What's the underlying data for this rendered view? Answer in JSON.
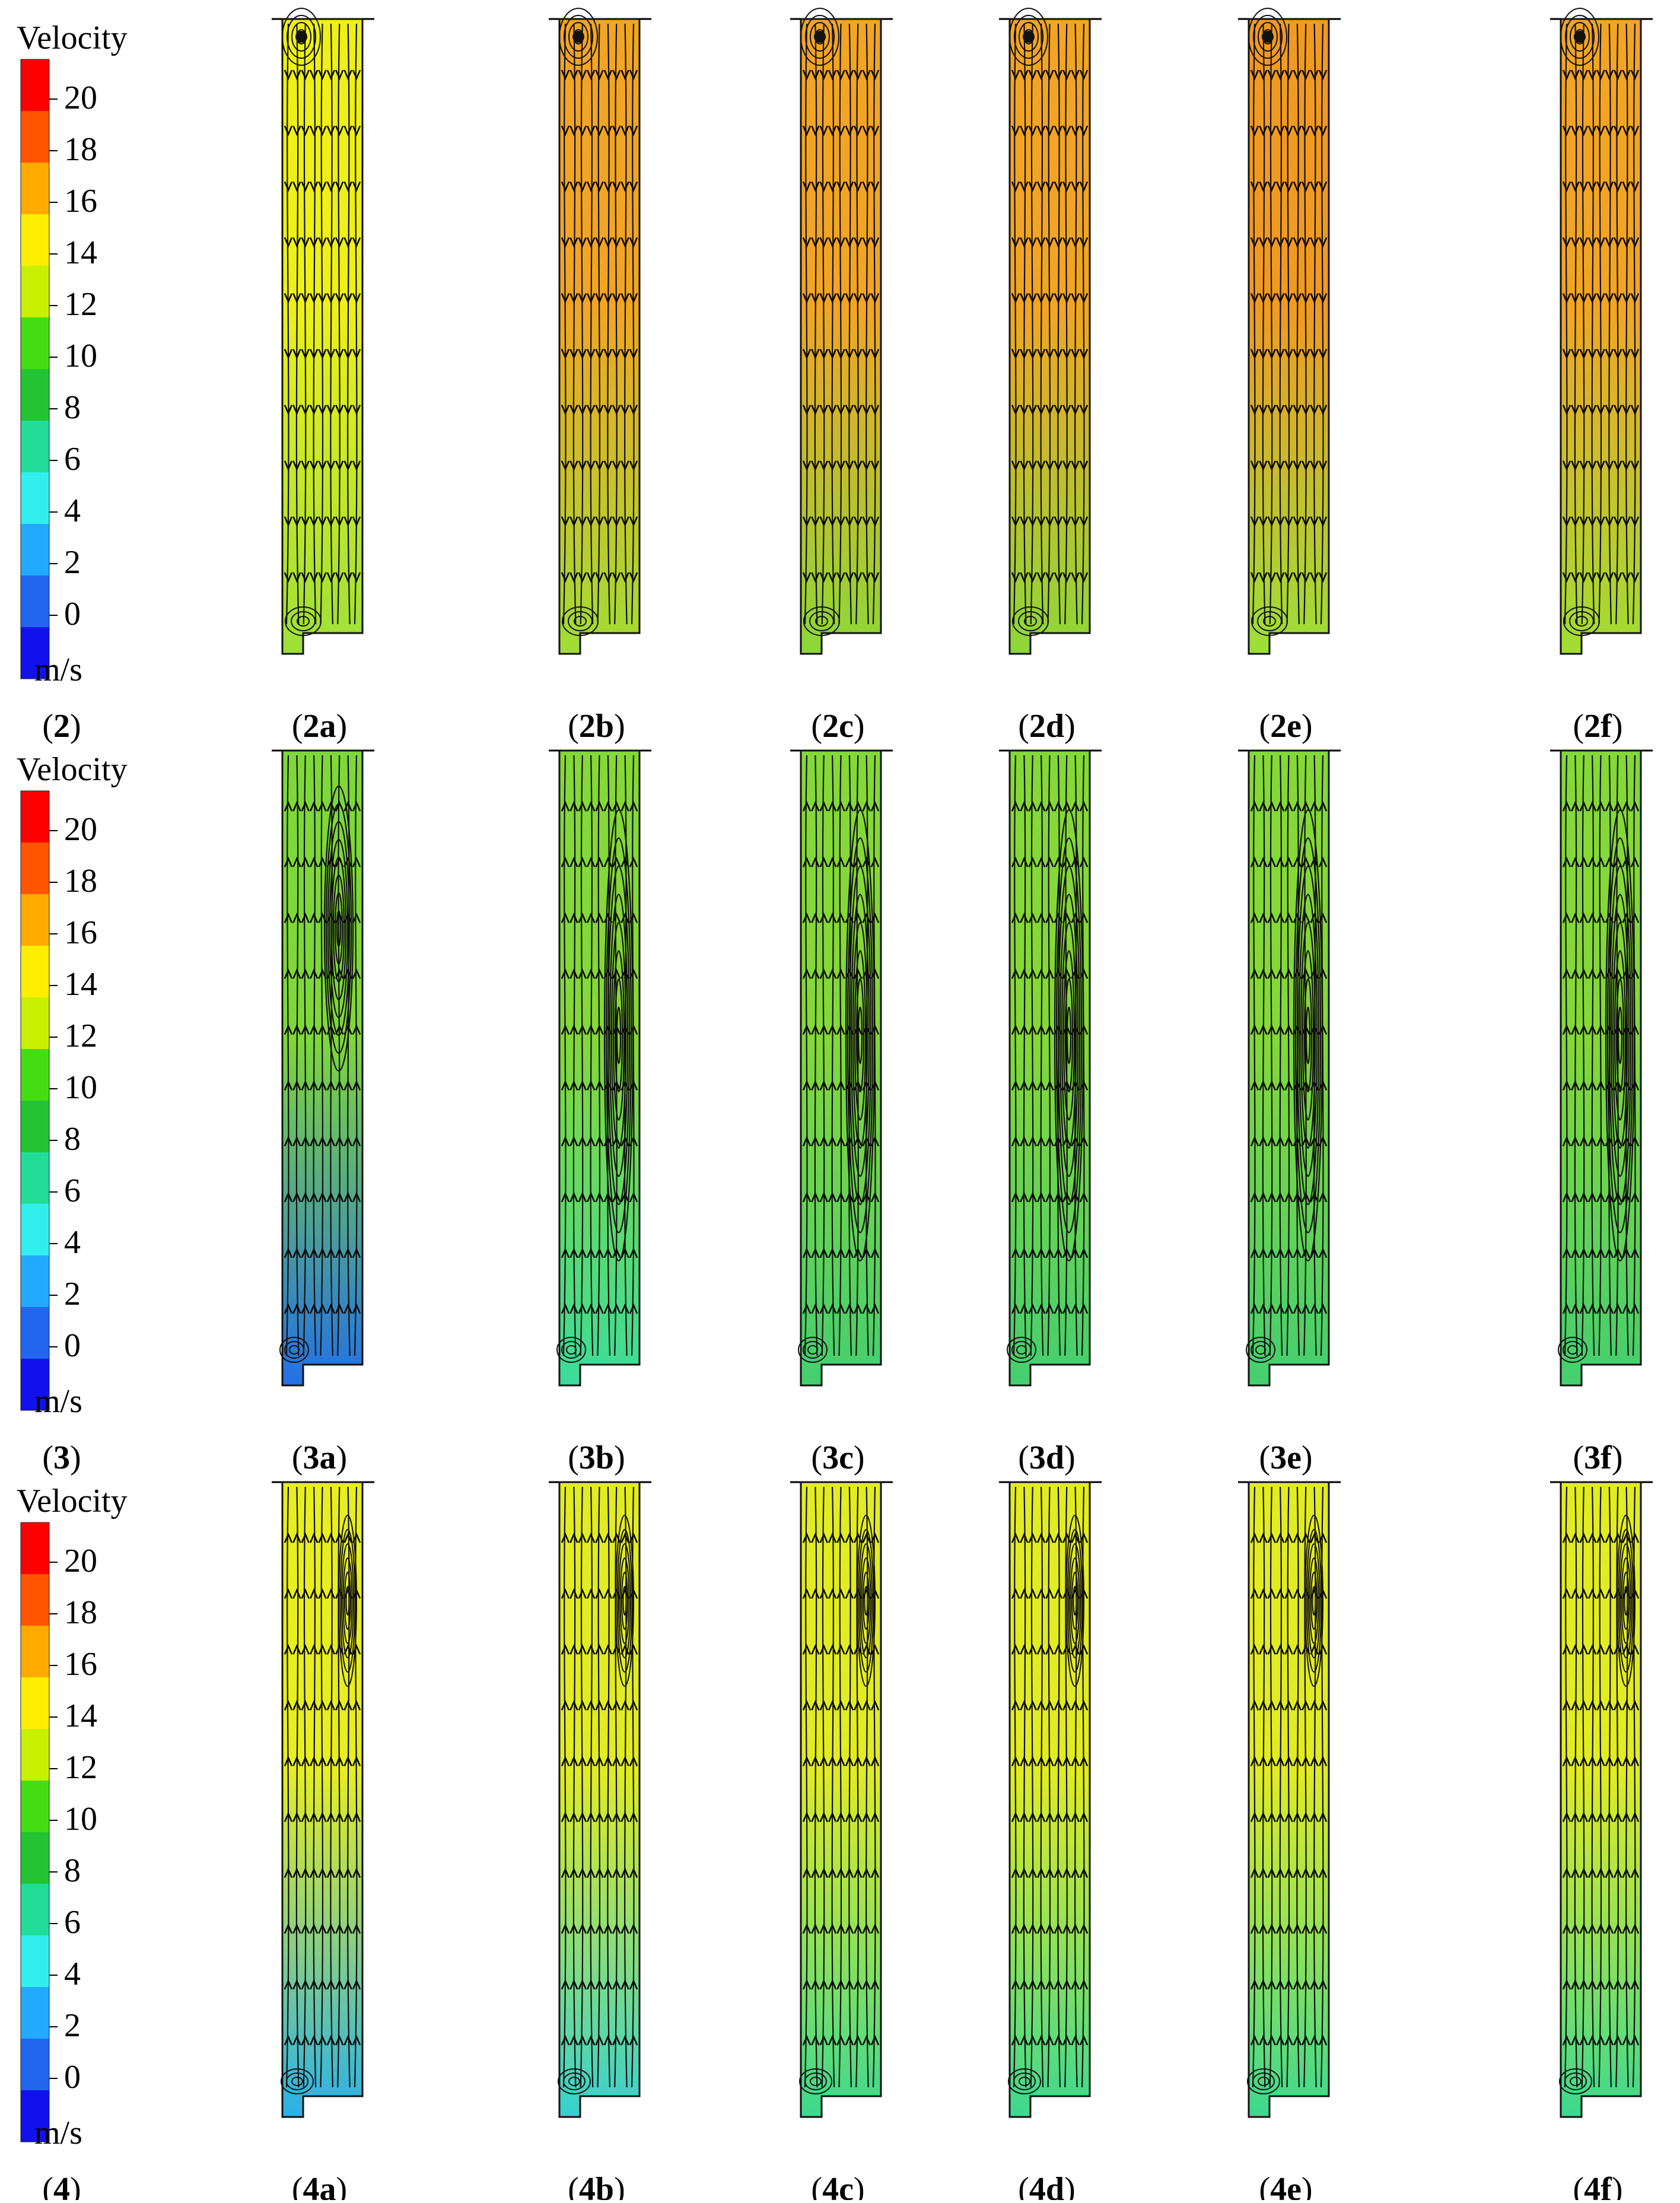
{
  "legend": {
    "title": "Velocity",
    "unit": "m/s",
    "ticks": [
      "20",
      "18",
      "16",
      "14",
      "12",
      "10",
      "8",
      "6",
      "4",
      "2",
      "0"
    ],
    "colors": [
      "#ff0000",
      "#ff5500",
      "#ffaa00",
      "#ffee00",
      "#c8f000",
      "#44dd11",
      "#22c433",
      "#22dd99",
      "#33eeee",
      "#22aaff",
      "#2266ee",
      "#1111ee"
    ]
  },
  "rows": [
    {
      "label_num": "2",
      "panels": [
        {
          "num": "2",
          "letter": "a",
          "top": "#eef018",
          "bottom": "#9ce038",
          "vortex": "none"
        },
        {
          "num": "2",
          "letter": "b",
          "top": "#f2a524",
          "bottom": "#a0de34",
          "vortex": "none"
        },
        {
          "num": "2",
          "letter": "c",
          "top": "#f2a524",
          "bottom": "#8cd838",
          "vortex": "none"
        },
        {
          "num": "2",
          "letter": "d",
          "top": "#f2a524",
          "bottom": "#8cd838",
          "vortex": "none"
        },
        {
          "num": "2",
          "letter": "e",
          "top": "#f19a22",
          "bottom": "#9ce038",
          "vortex": "none"
        },
        {
          "num": "2",
          "letter": "f",
          "top": "#f2a524",
          "bottom": "#a0de34",
          "vortex": "none"
        }
      ]
    },
    {
      "label_num": "3",
      "panels": [
        {
          "num": "3",
          "letter": "a",
          "top": "#7fd83a",
          "bottom": "#2270e6",
          "vortex": "upper"
        },
        {
          "num": "3",
          "letter": "b",
          "top": "#84d838",
          "bottom": "#3cdc9a",
          "vortex": "long"
        },
        {
          "num": "3",
          "letter": "c",
          "top": "#84d838",
          "bottom": "#44cf70",
          "vortex": "long"
        },
        {
          "num": "3",
          "letter": "d",
          "top": "#84d838",
          "bottom": "#44cf70",
          "vortex": "long"
        },
        {
          "num": "3",
          "letter": "e",
          "top": "#84d838",
          "bottom": "#44cf70",
          "vortex": "long"
        },
        {
          "num": "3",
          "letter": "f",
          "top": "#84d838",
          "bottom": "#44cf70",
          "vortex": "long"
        }
      ]
    },
    {
      "label_num": "4",
      "panels": [
        {
          "num": "4",
          "letter": "a",
          "top": "#e8ee20",
          "bottom": "#2ab0e8",
          "vortex": "upper-small"
        },
        {
          "num": "4",
          "letter": "b",
          "top": "#e2ec22",
          "bottom": "#36d0d0",
          "vortex": "upper-small"
        },
        {
          "num": "4",
          "letter": "c",
          "top": "#e2ec22",
          "bottom": "#3cd890",
          "vortex": "upper-small"
        },
        {
          "num": "4",
          "letter": "d",
          "top": "#e2ec22",
          "bottom": "#3cd890",
          "vortex": "upper-small"
        },
        {
          "num": "4",
          "letter": "e",
          "top": "#e2ec22",
          "bottom": "#3cd890",
          "vortex": "upper-small"
        },
        {
          "num": "4",
          "letter": "f",
          "top": "#e2ec22",
          "bottom": "#3cd890",
          "vortex": "upper-small"
        }
      ]
    }
  ]
}
